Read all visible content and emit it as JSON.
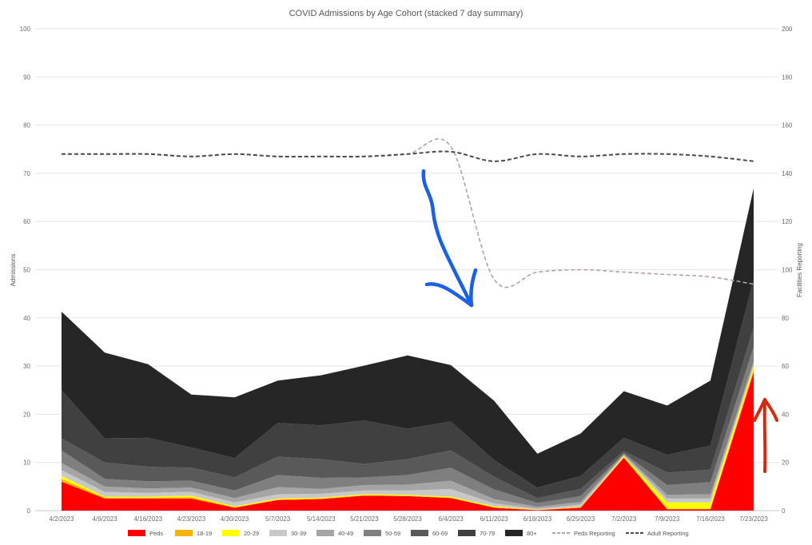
{
  "chart_data": {
    "type": "area",
    "title": "COVID Admissions by Age Cohort (stacked 7 day summary)",
    "ylabel": "Admissions",
    "y2label": "Facilities Reporting",
    "ylim": [
      0,
      100
    ],
    "y2lim": [
      0,
      200
    ],
    "yticks": [
      0,
      10,
      20,
      30,
      40,
      50,
      60,
      70,
      80,
      90,
      100
    ],
    "y2ticks": [
      0,
      20,
      40,
      60,
      80,
      100,
      120,
      140,
      160,
      180,
      200
    ],
    "grid": true,
    "legend_position": "bottom",
    "categories": [
      "4/2/2023",
      "4/9/2023",
      "4/16/2023",
      "4/23/2023",
      "4/30/2023",
      "5/7/2023",
      "5/14/2023",
      "5/21/2023",
      "5/28/2023",
      "6/4/2023",
      "6/11/2023",
      "6/18/2023",
      "6/25/2023",
      "7/2/2023",
      "7/9/2023",
      "7/16/2023",
      "7/23/2023"
    ],
    "series": [
      {
        "name": "Peds",
        "color": "#ff0000",
        "values": [
          6,
          2.5,
          2.5,
          2.5,
          0.6,
          2.2,
          2.4,
          3.1,
          3.0,
          2.6,
          0.6,
          0.1,
          0.6,
          11,
          0.3,
          0.3,
          28.7
        ]
      },
      {
        "name": "18-19",
        "color": "#f4b400",
        "values": [
          0.6,
          0.2,
          0.2,
          0.3,
          0.1,
          0.1,
          0.1,
          0.1,
          0.1,
          0.1,
          0.1,
          0.05,
          0.1,
          0.1,
          0.1,
          0.1,
          0.6
        ]
      },
      {
        "name": "20-29",
        "color": "#ffff00",
        "values": [
          0.6,
          0.2,
          0.2,
          0.3,
          0.2,
          0.2,
          0.2,
          0.2,
          0.2,
          0.2,
          0.2,
          0.05,
          0.1,
          0.2,
          1.3,
          1.3,
          0.6
        ]
      },
      {
        "name": "30-39",
        "color": "#c8c8c8",
        "values": [
          1.2,
          1.0,
          0.8,
          0.8,
          0.8,
          0.9,
          0.8,
          0.8,
          0.9,
          1.6,
          0.6,
          0.2,
          0.5,
          0.2,
          0.8,
          0.8,
          0.5
        ]
      },
      {
        "name": "40-49",
        "color": "#a5a5a5",
        "values": [
          1.5,
          1.1,
          0.9,
          0.9,
          0.9,
          1.5,
          1.0,
          1.1,
          1.2,
          1.7,
          0.9,
          0.4,
          0.5,
          0.2,
          0.8,
          0.9,
          0.6
        ]
      },
      {
        "name": "50-59",
        "color": "#7f7f7f",
        "values": [
          2.6,
          1.6,
          1.5,
          1.4,
          1.6,
          2.5,
          2.3,
          1.6,
          2.0,
          2.7,
          2.0,
          0.8,
          1.2,
          0.2,
          2.0,
          2.5,
          3.0
        ]
      },
      {
        "name": "60-69",
        "color": "#595959",
        "values": [
          2.5,
          3.4,
          3.0,
          2.7,
          2.7,
          3.8,
          3.9,
          2.8,
          3.3,
          3.6,
          2.6,
          1.0,
          1.5,
          0.5,
          2.6,
          2.6,
          4.0
        ]
      },
      {
        "name": "70-79",
        "color": "#404040",
        "values": [
          10.0,
          5.0,
          6.0,
          4.2,
          4.0,
          7.0,
          7.0,
          9.0,
          6.3,
          6.0,
          3.5,
          2.2,
          2.7,
          2.7,
          3.7,
          5.0,
          10.0
        ]
      },
      {
        "name": "80+",
        "color": "#262626",
        "values": [
          16.3,
          17.8,
          15.3,
          11.0,
          12.6,
          8.8,
          10.4,
          11.4,
          15.2,
          11.7,
          12.3,
          7.0,
          8.8,
          9.7,
          10.2,
          13.5,
          18.9
        ]
      }
    ],
    "line_series": [
      {
        "name": "Peds Reporting",
        "color": "#b0a2a8",
        "style": "dashed",
        "axis": "right",
        "values": [
          148,
          148,
          148,
          147,
          148,
          147,
          147,
          147,
          148,
          151,
          96,
          99,
          100,
          99,
          98,
          97,
          94
        ]
      },
      {
        "name": "Adult Reporting",
        "color": "#4a4a4a",
        "style": "dashed",
        "axis": "right",
        "values": [
          148,
          148,
          148,
          147,
          148,
          147,
          147,
          147,
          148,
          149,
          145,
          148,
          147,
          148,
          148,
          147,
          145
        ]
      }
    ]
  },
  "annotations": [
    {
      "name": "blue-arrow",
      "color": "#1a5fe8"
    },
    {
      "name": "red-arrow",
      "color": "#d42a10"
    }
  ]
}
